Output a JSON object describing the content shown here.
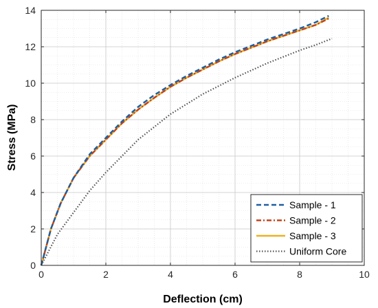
{
  "chart_data": {
    "type": "line",
    "xlabel": "Deflection (cm)",
    "ylabel": "Stress (MPa)",
    "xlim": [
      0,
      10
    ],
    "ylim": [
      0,
      14
    ],
    "xticks": [
      0,
      2,
      4,
      6,
      8,
      10
    ],
    "yticks": [
      0,
      2,
      4,
      6,
      8,
      10,
      12,
      14
    ],
    "grid": true,
    "minor_grid": true,
    "legend_position": "bottom-right",
    "series": [
      {
        "name": "Sample - 1",
        "color": "#1f5fa0",
        "style": "dashed",
        "x": [
          0,
          0.3,
          0.6,
          1.0,
          1.5,
          2.0,
          2.5,
          3.0,
          3.5,
          4.0,
          4.5,
          5.0,
          5.5,
          6.0,
          6.5,
          7.0,
          7.5,
          8.0,
          8.5,
          8.9
        ],
        "y": [
          0,
          2.0,
          3.4,
          4.8,
          6.1,
          7.0,
          7.9,
          8.7,
          9.35,
          9.9,
          10.4,
          10.85,
          11.3,
          11.7,
          12.05,
          12.4,
          12.7,
          13.0,
          13.35,
          13.7
        ]
      },
      {
        "name": "Sample - 2",
        "color": "#c0451d",
        "style": "dashdot",
        "x": [
          0,
          0.3,
          0.6,
          1.0,
          1.5,
          2.0,
          2.5,
          3.0,
          3.5,
          4.0,
          4.5,
          5.0,
          5.5,
          6.0,
          6.5,
          7.0,
          7.5,
          8.0,
          8.5,
          8.9
        ],
        "y": [
          0,
          2.0,
          3.4,
          4.8,
          6.0,
          6.9,
          7.8,
          8.55,
          9.2,
          9.8,
          10.3,
          10.75,
          11.2,
          11.6,
          11.95,
          12.3,
          12.6,
          12.9,
          13.2,
          13.55
        ]
      },
      {
        "name": "Sample - 3",
        "color": "#edb120",
        "style": "solid",
        "x": [
          0,
          0.3,
          0.6,
          1.0,
          1.5,
          2.0,
          2.5,
          3.0,
          3.5,
          4.0,
          4.5,
          5.0,
          5.5,
          6.0,
          6.5,
          7.0,
          7.5,
          8.0,
          8.5,
          8.9
        ],
        "y": [
          0,
          2.0,
          3.4,
          4.8,
          6.0,
          6.9,
          7.8,
          8.55,
          9.2,
          9.8,
          10.3,
          10.75,
          11.2,
          11.6,
          11.95,
          12.3,
          12.6,
          12.9,
          13.2,
          13.6
        ]
      },
      {
        "name": "Uniform Core",
        "color": "#505050",
        "style": "dotted",
        "x": [
          0,
          0.5,
          1.0,
          1.5,
          2.0,
          2.5,
          3.0,
          3.5,
          4.0,
          4.5,
          5.0,
          5.5,
          6.0,
          6.5,
          7.0,
          7.5,
          8.0,
          8.5,
          9.0
        ],
        "y": [
          0,
          1.7,
          2.9,
          4.1,
          5.1,
          6.0,
          6.9,
          7.6,
          8.3,
          8.85,
          9.4,
          9.85,
          10.3,
          10.7,
          11.1,
          11.45,
          11.8,
          12.1,
          12.45
        ]
      }
    ]
  }
}
